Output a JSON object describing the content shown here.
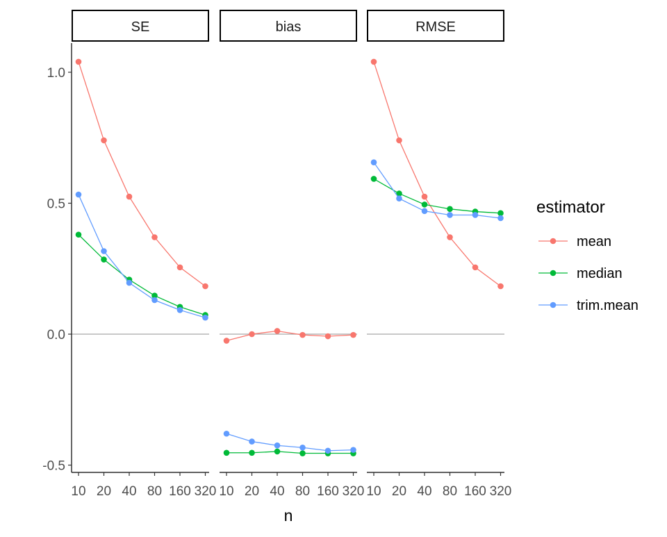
{
  "chart_data": {
    "type": "line",
    "facet_variable": "",
    "facets": [
      "SE",
      "bias",
      "RMSE"
    ],
    "categories": [
      "10",
      "20",
      "40",
      "80",
      "160",
      "320"
    ],
    "xlabel": "n",
    "ylabel": "",
    "ylim": [
      -0.52,
      1.12
    ],
    "yticks": [
      -0.5,
      0.0,
      0.5,
      1.0
    ],
    "ytick_labels": [
      "-0.5",
      "0.0",
      "0.5",
      "1.0"
    ],
    "reference_line": {
      "y": 0,
      "color": "#a6a6a6",
      "facets": [
        "SE",
        "bias",
        "RMSE"
      ]
    },
    "legend": {
      "title": "estimator",
      "placement": "right"
    },
    "grid": false,
    "series": [
      {
        "name": "mean",
        "color": "#F8766D",
        "values": {
          "SE": [
            1.04,
            0.74,
            0.525,
            0.37,
            0.255,
            0.183
          ],
          "bias": [
            -0.025,
            0.0,
            0.012,
            -0.003,
            -0.008,
            -0.003
          ],
          "RMSE": [
            1.04,
            0.74,
            0.525,
            0.37,
            0.255,
            0.183
          ]
        }
      },
      {
        "name": "median",
        "color": "#00BA38",
        "values": {
          "SE": [
            0.38,
            0.285,
            0.208,
            0.147,
            0.104,
            0.073
          ],
          "bias": [
            -0.453,
            -0.453,
            -0.448,
            -0.455,
            -0.455,
            -0.455
          ],
          "RMSE": [
            0.593,
            0.537,
            0.495,
            0.478,
            0.468,
            0.462
          ]
        }
      },
      {
        "name": "trim.mean",
        "color": "#619CFF",
        "values": {
          "SE": [
            0.533,
            0.317,
            0.196,
            0.13,
            0.092,
            0.063
          ],
          "bias": [
            -0.38,
            -0.41,
            -0.425,
            -0.433,
            -0.445,
            -0.442
          ],
          "RMSE": [
            0.656,
            0.518,
            0.47,
            0.455,
            0.455,
            0.443
          ]
        }
      }
    ]
  }
}
